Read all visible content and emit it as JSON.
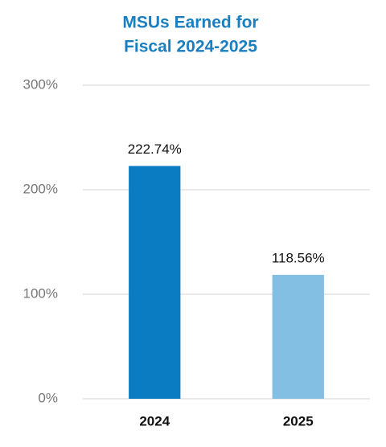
{
  "chart_data": {
    "type": "bar",
    "title": [
      "MSUs Earned for",
      "Fiscal 2024-2025"
    ],
    "categories": [
      "2024",
      "2025"
    ],
    "values": [
      222.74,
      118.56
    ],
    "value_labels": [
      "222.74%",
      "118.56%"
    ],
    "colors": [
      "#0a7dc2",
      "#82bfe2"
    ],
    "ylim": [
      0,
      300
    ],
    "yticks": [
      {
        "value": 0,
        "label": "0%"
      },
      {
        "value": 100,
        "label": "100%"
      },
      {
        "value": 200,
        "label": "200%"
      },
      {
        "value": 300,
        "label": "300%"
      }
    ],
    "grid": true
  }
}
